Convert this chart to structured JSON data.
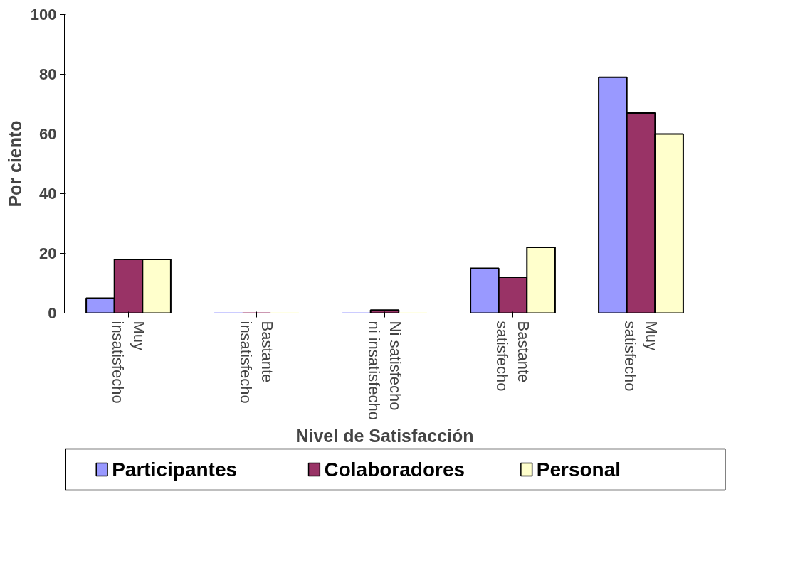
{
  "chart_data": {
    "type": "bar",
    "xlabel": "Nivel de Satisfacción",
    "ylabel": "Por ciento",
    "categories": [
      "Muy\ninsatisfecho",
      "Bastante\ninsatisfecho",
      "Ni satisfecho\nni insatisfecho",
      "Bastante\nsatisfecho",
      "Muy\nsatisfecho"
    ],
    "series": [
      {
        "name": "Participantes",
        "color": "#9999ff",
        "values": [
          5,
          0,
          0,
          15,
          79
        ]
      },
      {
        "name": "Colaboradores",
        "color": "#993366",
        "values": [
          18,
          0,
          1,
          12,
          67
        ]
      },
      {
        "name": "Personal",
        "color": "#ffffcc",
        "values": [
          18,
          0,
          0,
          22,
          60
        ]
      }
    ],
    "ylim": [
      0,
      100
    ],
    "yticks": [
      0,
      20,
      40,
      60,
      80,
      100
    ],
    "grid": false,
    "legend": "bottom"
  }
}
